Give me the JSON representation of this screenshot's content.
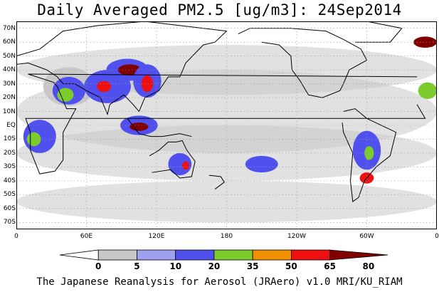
{
  "title": "Daily Averaged PM2.5 [ug/m3]: 24Sep2014",
  "footer": "The Japanese Reanalysis for Aerosol (JRAero) v1.0 MRI/KU_RIAM",
  "map": {
    "lat_range": [
      -75,
      75
    ],
    "lon_range": [
      0,
      360
    ],
    "lat_ticks": [
      "70N",
      "60N",
      "50N",
      "40N",
      "30N",
      "20N",
      "10N",
      "EQ",
      "10S",
      "20S",
      "30S",
      "40S",
      "50S",
      "60S",
      "70S"
    ],
    "lat_values": [
      70,
      60,
      50,
      40,
      30,
      20,
      10,
      0,
      -10,
      -20,
      -30,
      -40,
      -50,
      -60,
      -70
    ],
    "lon_ticks": [
      "0",
      "60E",
      "120E",
      "180",
      "120W",
      "60W",
      "0"
    ],
    "lon_values": [
      0,
      60,
      120,
      180,
      240,
      300,
      360
    ],
    "grid": true
  },
  "colorbar": {
    "levels": [
      "0",
      "5",
      "10",
      "20",
      "35",
      "50",
      "65",
      "80"
    ],
    "colors": [
      "#ffffff",
      "#c8c8c8",
      "#a0a0f0",
      "#5050ee",
      "#7ccc2c",
      "#f09000",
      "#ee1010",
      "#800000"
    ]
  },
  "field_blobs": [
    {
      "lon": 45,
      "lat": 28,
      "rx": 22,
      "ry": 14,
      "level": 1
    },
    {
      "lon": 45,
      "lat": 25,
      "rx": 14,
      "ry": 10,
      "level": 3
    },
    {
      "lon": 42,
      "lat": 22,
      "rx": 7,
      "ry": 5,
      "level": 4
    },
    {
      "lon": 78,
      "lat": 28,
      "rx": 20,
      "ry": 12,
      "level": 3
    },
    {
      "lon": 75,
      "lat": 28,
      "rx": 6,
      "ry": 4,
      "level": 6
    },
    {
      "lon": 95,
      "lat": 40,
      "rx": 18,
      "ry": 8,
      "level": 3
    },
    {
      "lon": 97,
      "lat": 40,
      "rx": 10,
      "ry": 4,
      "level": 7
    },
    {
      "lon": 112,
      "lat": 32,
      "rx": 12,
      "ry": 12,
      "level": 3
    },
    {
      "lon": 112,
      "lat": 30,
      "rx": 5,
      "ry": 6,
      "level": 6
    },
    {
      "lon": 105,
      "lat": 0,
      "rx": 16,
      "ry": 7,
      "level": 3
    },
    {
      "lon": 105,
      "lat": -1,
      "rx": 8,
      "ry": 3,
      "level": 7
    },
    {
      "lon": 20,
      "lat": -8,
      "rx": 14,
      "ry": 12,
      "level": 3
    },
    {
      "lon": 15,
      "lat": -10,
      "rx": 6,
      "ry": 5,
      "level": 4
    },
    {
      "lon": 140,
      "lat": -28,
      "rx": 10,
      "ry": 8,
      "level": 3
    },
    {
      "lon": 145,
      "lat": -29,
      "rx": 3,
      "ry": 3,
      "level": 6
    },
    {
      "lon": 210,
      "lat": -28,
      "rx": 14,
      "ry": 6,
      "level": 3
    },
    {
      "lon": 300,
      "lat": -18,
      "rx": 12,
      "ry": 14,
      "level": 3
    },
    {
      "lon": 302,
      "lat": -20,
      "rx": 4,
      "ry": 5,
      "level": 4
    },
    {
      "lon": 300,
      "lat": -38,
      "rx": 6,
      "ry": 4,
      "level": 6
    },
    {
      "lon": 350,
      "lat": 60,
      "rx": 10,
      "ry": 4,
      "level": 7
    },
    {
      "lon": 352,
      "lat": 25,
      "rx": 8,
      "ry": 6,
      "level": 4
    }
  ]
}
